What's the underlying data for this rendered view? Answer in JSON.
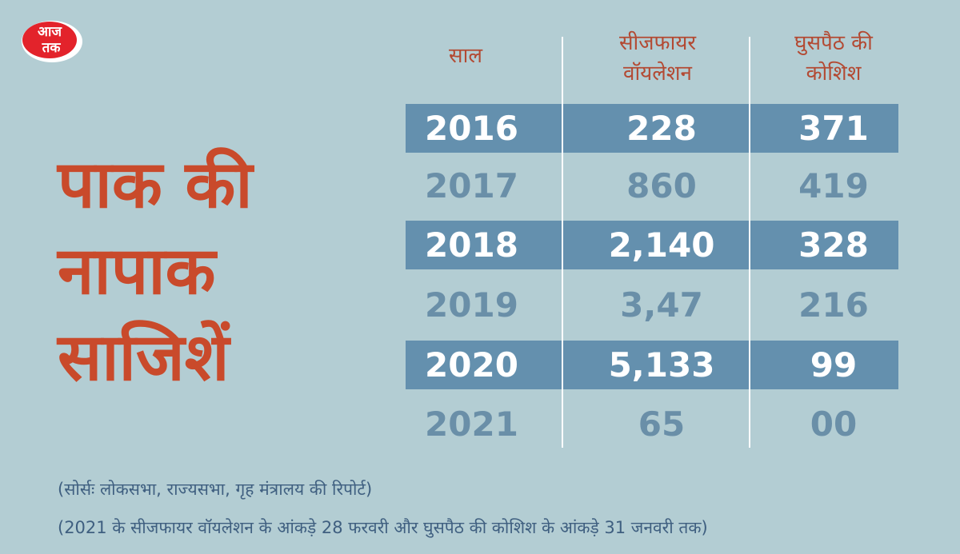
{
  "brand": {
    "logo_text_top": "आज",
    "logo_text_bottom": "तक",
    "logo_color": "#e3232b"
  },
  "headline": {
    "lines": [
      "पाक की",
      "नापाक",
      "साजिशें"
    ],
    "color": "#c94a2b"
  },
  "table": {
    "columns": [
      "साल",
      "सीजफायर वॉयलेशन",
      "घुसपैठ की कोशिश"
    ],
    "column_lines": [
      [
        "साल"
      ],
      [
        "सीजफायर",
        "वॉयलेशन"
      ],
      [
        "घुसपैठ की",
        "कोशिश"
      ]
    ],
    "rows": [
      {
        "year": "2016",
        "ceasefire": "228",
        "infiltration": "371",
        "highlighted": true
      },
      {
        "year": "2017",
        "ceasefire": "860",
        "infiltration": "419",
        "highlighted": false
      },
      {
        "year": "2018",
        "ceasefire": "2,140",
        "infiltration": "328",
        "highlighted": true
      },
      {
        "year": "2019",
        "ceasefire": "3,47",
        "infiltration": "216",
        "highlighted": false
      },
      {
        "year": "2020",
        "ceasefire": "5,133",
        "infiltration": "99",
        "highlighted": true
      },
      {
        "year": "2021",
        "ceasefire": "65",
        "infiltration": "00",
        "highlighted": false
      }
    ],
    "band_color": "#6490ae"
  },
  "footer": {
    "source": "(सोर्सः लोकसभा, राज्यसभा, गृह मंत्रालय की रिपोर्ट)",
    "note": "(2021 के सीजफायर वॉयलेशन के आंकड़े 28 फरवरी और घुसपैठ की कोशिश के आंकड़े 31 जनवरी तक)"
  }
}
